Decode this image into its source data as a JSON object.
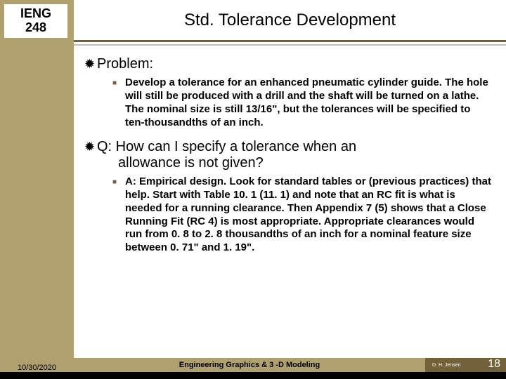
{
  "course": {
    "line1": "IENG",
    "line2": "248"
  },
  "title": "Std. Tolerance Development",
  "body": {
    "problem_label": "Problem:",
    "problem_text": "Develop a tolerance for an enhanced pneumatic cylinder guide.  The hole will still be produced with a drill and the shaft will be turned on a lathe.  The nominal size is still 13/16\", but the tolerances will be specified to ten-thousandths of an inch.",
    "q_line1": "Q:  How can I specify a tolerance when an",
    "q_line2": "allowance is not given?",
    "answer_text": "A:  Empirical design.  Look for standard tables or (previous practices) that help.  Start with Table 10. 1 (11. 1) and note that an RC fit is what is needed for a running clearance.  Then Appendix 7 (5) shows that a Close Running Fit (RC 4) is most appropriate.  Appropriate clearances would run from 0. 8 to 2. 8 thousandths of an inch for a nominal feature size between 0. 71\" and 1. 19\"."
  },
  "footer": {
    "date": "10/30/2020",
    "center": "Engineering Graphics & 3 -D Modeling",
    "author": "D. H. Jensen",
    "page": "18"
  },
  "colors": {
    "sidebar": "#b0a06f",
    "accent_dark": "#736239",
    "bg": "#ffffff"
  }
}
